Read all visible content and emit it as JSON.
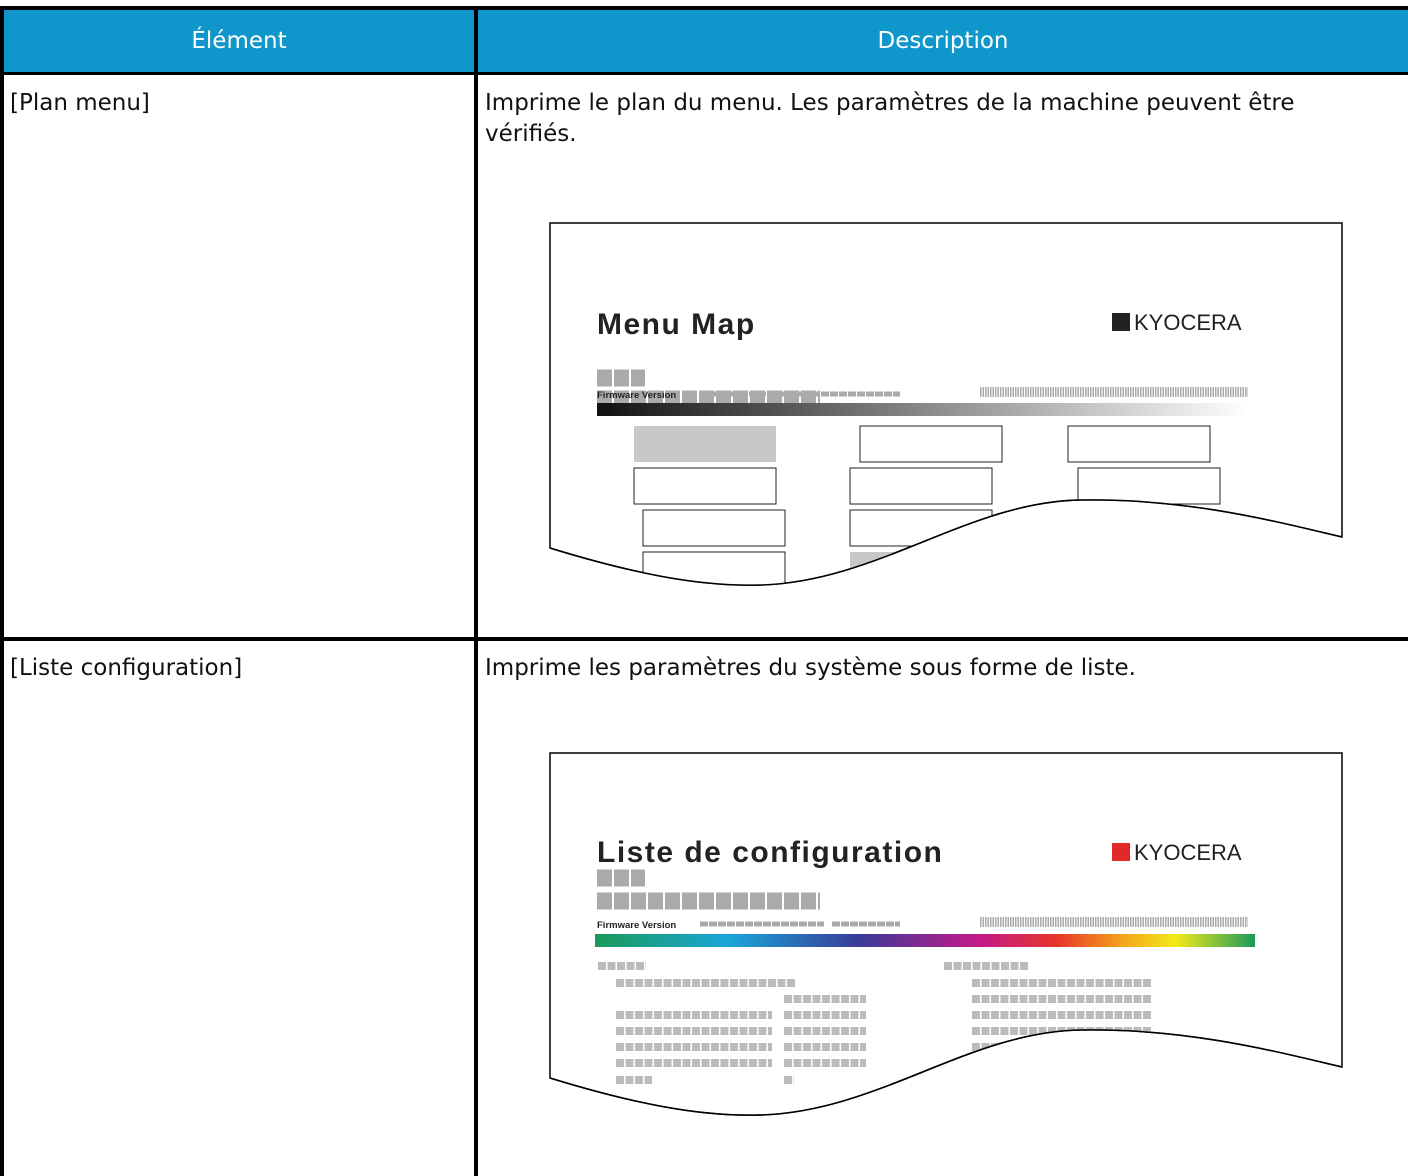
{
  "table": {
    "columns": [
      "Élément",
      "Description"
    ],
    "rows": [
      {
        "item": "[Plan menu]",
        "description": "Imprime le plan du menu. Les paramètres de la machine peuvent être vérifiés.",
        "figure": {
          "title": "Menu Map",
          "logo": "KYOCERA",
          "caption": "Firmware Version"
        }
      },
      {
        "item": "[Liste configuration]",
        "description": "Imprime les paramètres du système sous forme de liste.",
        "figure": {
          "title": "Liste de configuration",
          "logo": "KYOCERA",
          "caption": "Firmware Version"
        }
      }
    ]
  }
}
